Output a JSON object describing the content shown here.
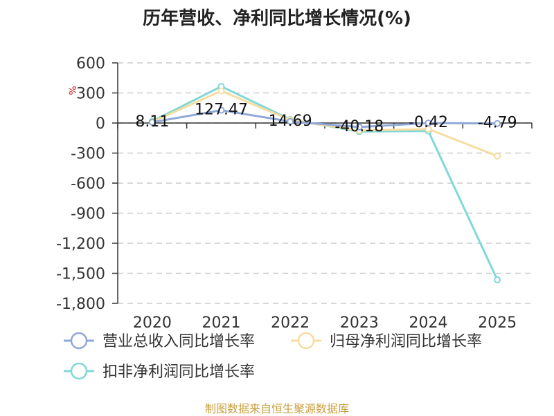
{
  "title": "历年营收、净利同比增长情况(%)",
  "source": "制图数据来自恒生聚源数据库",
  "colors": {
    "revenue": "#8fa8d8",
    "net_profit": "#f7dca0",
    "deducted_profit": "#80d8d8",
    "grid": "#cccccc",
    "axis": "#333333"
  },
  "chart_data": {
    "type": "line",
    "title": "历年营收、净利同比增长情况(%)",
    "ylabel": "%",
    "xlabel": "",
    "categories": [
      "2020",
      "2021",
      "2022",
      "2023",
      "2024",
      "2025"
    ],
    "ylim": [
      -1800,
      600
    ],
    "yticks": [
      600,
      300,
      0,
      -300,
      -600,
      -900,
      -1200,
      -1500,
      -1800
    ],
    "ytick_labels": [
      "600",
      "300",
      "0",
      "-300",
      "-600",
      "-900",
      "-1,200",
      "-1,500",
      "-1,800"
    ],
    "grid": true,
    "legend_position": "bottom",
    "series": [
      {
        "name": "营业总收入同比增长率",
        "color_key": "revenue",
        "values": [
          8.11,
          127.47,
          14.69,
          -40.18,
          -0.42,
          -4.79
        ],
        "labels": [
          "8.11",
          "127.47",
          "14.69",
          "-40.18",
          "-0.42",
          "-4.79"
        ]
      },
      {
        "name": "归母净利润同比增长率",
        "color_key": "net_profit",
        "values": [
          12,
          320,
          30,
          -75,
          -60,
          -330
        ]
      },
      {
        "name": "扣非净利润同比增长率",
        "color_key": "deducted_profit",
        "values": [
          18,
          365,
          35,
          -85,
          -80,
          -1565
        ]
      }
    ]
  }
}
